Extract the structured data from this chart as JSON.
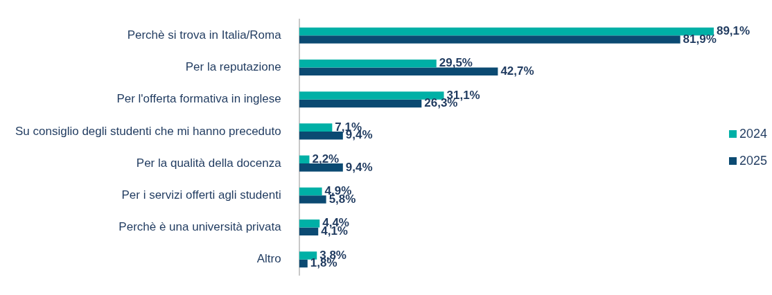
{
  "chart_data": {
    "type": "bar",
    "orientation": "horizontal",
    "categories": [
      "Perchè si trova in Italia/Roma",
      "Per la reputazione",
      "Per l'offerta formativa in inglese",
      "Su consiglio degli studenti che mi hanno preceduto",
      "Per la qualità della docenza",
      "Per i servizi offerti agli studenti",
      "Perchè è una università privata",
      "Altro"
    ],
    "series": [
      {
        "name": "2024",
        "color": "#00b0a6",
        "values": [
          89.1,
          29.5,
          31.1,
          7.1,
          2.2,
          4.9,
          4.4,
          3.8
        ],
        "value_labels": [
          "89,1%",
          "29,5%",
          "31,1%",
          "7,1%",
          "2,2%",
          "4,9%",
          "4,4%",
          "3,8%"
        ]
      },
      {
        "name": "2025",
        "color": "#0b4a72",
        "values": [
          81.9,
          42.7,
          26.3,
          9.4,
          9.4,
          5.8,
          4.1,
          1.8
        ],
        "value_labels": [
          "81,9%",
          "42,7%",
          "26,3%",
          "9,4%",
          "9,4%",
          "5,8%",
          "4,1%",
          "1,8%"
        ]
      }
    ],
    "tick_labels": "y",
    "legend": "right"
  }
}
